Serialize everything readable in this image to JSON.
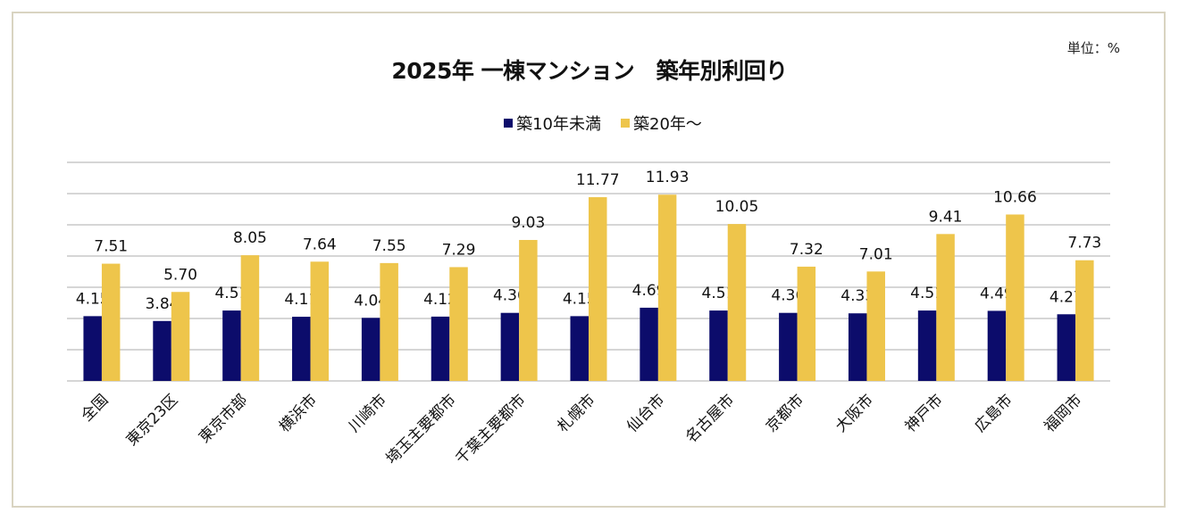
{
  "chart_data": {
    "type": "bar",
    "title": "2025年 一棟マンション　築年別利回り",
    "unit_label": "単位：%",
    "categories": [
      "全国",
      "東京23区",
      "東京市部",
      "横浜市",
      "川崎市",
      "埼玉主要都市",
      "千葉主要都市",
      "札幌市",
      "仙台市",
      "名古屋市",
      "京都市",
      "大阪市",
      "神戸市",
      "広島市",
      "福岡市"
    ],
    "series": [
      {
        "name": "築10年未満",
        "color": "#0c0c6b",
        "values": [
          4.15,
          3.84,
          4.51,
          4.11,
          4.04,
          4.12,
          4.36,
          4.15,
          4.69,
          4.51,
          4.36,
          4.33,
          4.51,
          4.49,
          4.27
        ],
        "labels": [
          "4.15",
          "3.84",
          "4.51",
          "4.11",
          "4.04",
          "4.12",
          "4.36",
          "4.15",
          "4.69",
          "4.51",
          "4.36",
          "4.33",
          "4.51",
          "4.49",
          "4.27"
        ]
      },
      {
        "name": "築20年～",
        "color": "#eec54b",
        "values": [
          7.51,
          5.7,
          8.05,
          7.64,
          7.55,
          7.29,
          9.03,
          11.77,
          11.93,
          10.05,
          7.32,
          7.01,
          9.41,
          10.66,
          7.73
        ],
        "labels": [
          "7.51",
          "5.70",
          "8.05",
          "7.64",
          "7.55",
          "7.29",
          "9.03",
          "11.77",
          "11.93",
          "10.05",
          "7.32",
          "7.01",
          "9.41",
          "10.66",
          "7.73"
        ]
      }
    ],
    "ylim": [
      0,
      14
    ],
    "grid": true,
    "gridline_step": 2,
    "y_tick_labels_shown": false,
    "legend_position": "top"
  }
}
